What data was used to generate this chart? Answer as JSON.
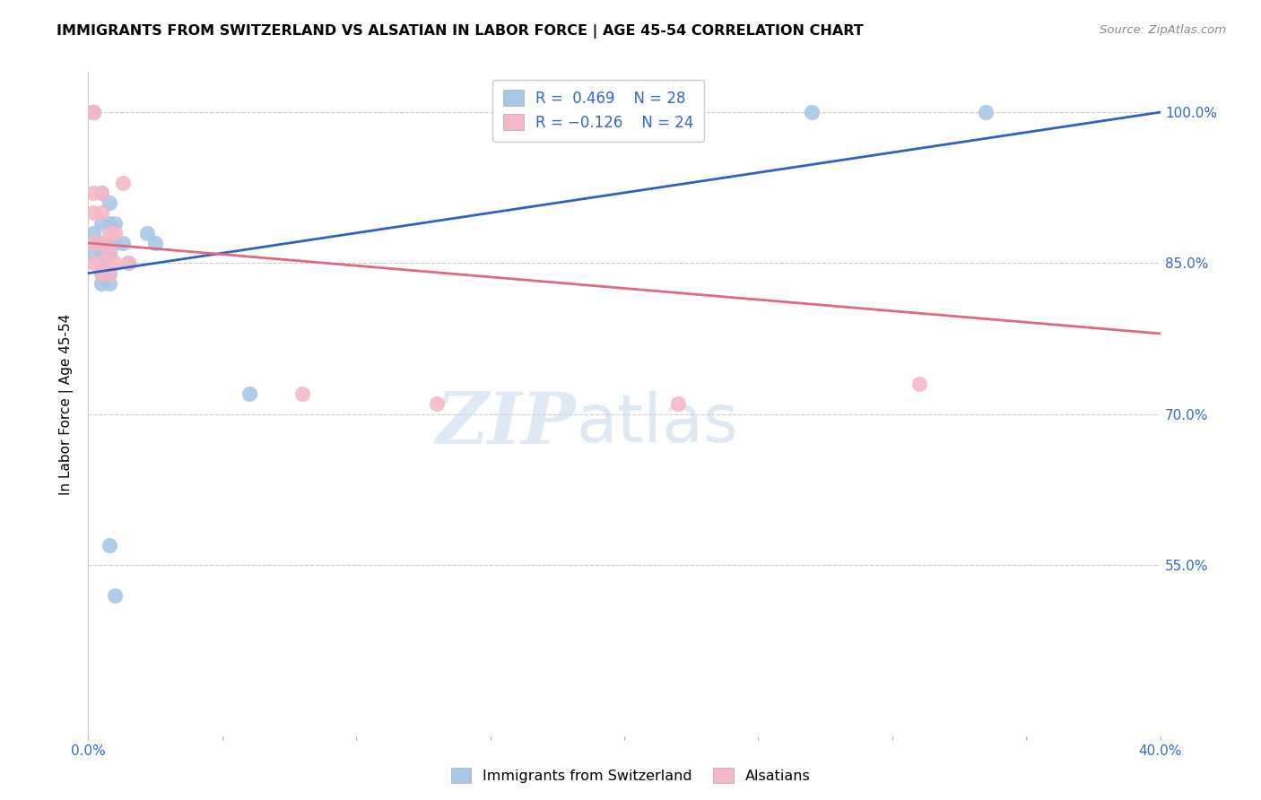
{
  "title": "IMMIGRANTS FROM SWITZERLAND VS ALSATIAN IN LABOR FORCE | AGE 45-54 CORRELATION CHART",
  "source": "Source: ZipAtlas.com",
  "ylabel": "In Labor Force | Age 45-54",
  "ytick_labels": [
    "100.0%",
    "85.0%",
    "70.0%",
    "55.0%"
  ],
  "ytick_values": [
    1.0,
    0.85,
    0.7,
    0.55
  ],
  "xlim": [
    0.0,
    0.4
  ],
  "ylim": [
    0.38,
    1.04
  ],
  "blue_color": "#a8c8e8",
  "pink_color": "#f4b8c8",
  "line_blue": "#3060c0",
  "line_pink": "#e06880",
  "blue_line_x0": 0.0,
  "blue_line_y0": 0.84,
  "blue_line_x1": 0.4,
  "blue_line_y1": 1.0,
  "pink_line_x0": 0.0,
  "pink_line_y0": 0.87,
  "pink_line_x1": 0.4,
  "pink_line_y1": 0.78,
  "blue_points_x": [
    0.002,
    0.002,
    0.002,
    0.002,
    0.002,
    0.002,
    0.002,
    0.002,
    0.002,
    0.005,
    0.005,
    0.005,
    0.005,
    0.005,
    0.005,
    0.005,
    0.008,
    0.008,
    0.008,
    0.008,
    0.008,
    0.01,
    0.01,
    0.013,
    0.015,
    0.022,
    0.025,
    0.06,
    0.175,
    0.008,
    0.01,
    0.27,
    0.335
  ],
  "blue_points_y": [
    1.0,
    1.0,
    1.0,
    1.0,
    1.0,
    1.0,
    1.0,
    0.88,
    0.86,
    0.92,
    0.89,
    0.87,
    0.86,
    0.85,
    0.84,
    0.83,
    0.91,
    0.89,
    0.86,
    0.84,
    0.83,
    0.89,
    0.87,
    0.87,
    0.85,
    0.88,
    0.87,
    0.72,
    1.0,
    0.57,
    0.52,
    1.0,
    1.0
  ],
  "pink_points_x": [
    0.002,
    0.002,
    0.002,
    0.002,
    0.002,
    0.002,
    0.002,
    0.002,
    0.005,
    0.005,
    0.005,
    0.005,
    0.005,
    0.008,
    0.008,
    0.008,
    0.01,
    0.01,
    0.013,
    0.015,
    0.08,
    0.13,
    0.22,
    0.31
  ],
  "pink_points_y": [
    1.0,
    1.0,
    1.0,
    1.0,
    0.92,
    0.9,
    0.87,
    0.85,
    0.92,
    0.9,
    0.87,
    0.85,
    0.84,
    0.88,
    0.86,
    0.84,
    0.88,
    0.85,
    0.93,
    0.85,
    0.72,
    0.71,
    0.71,
    0.73
  ]
}
